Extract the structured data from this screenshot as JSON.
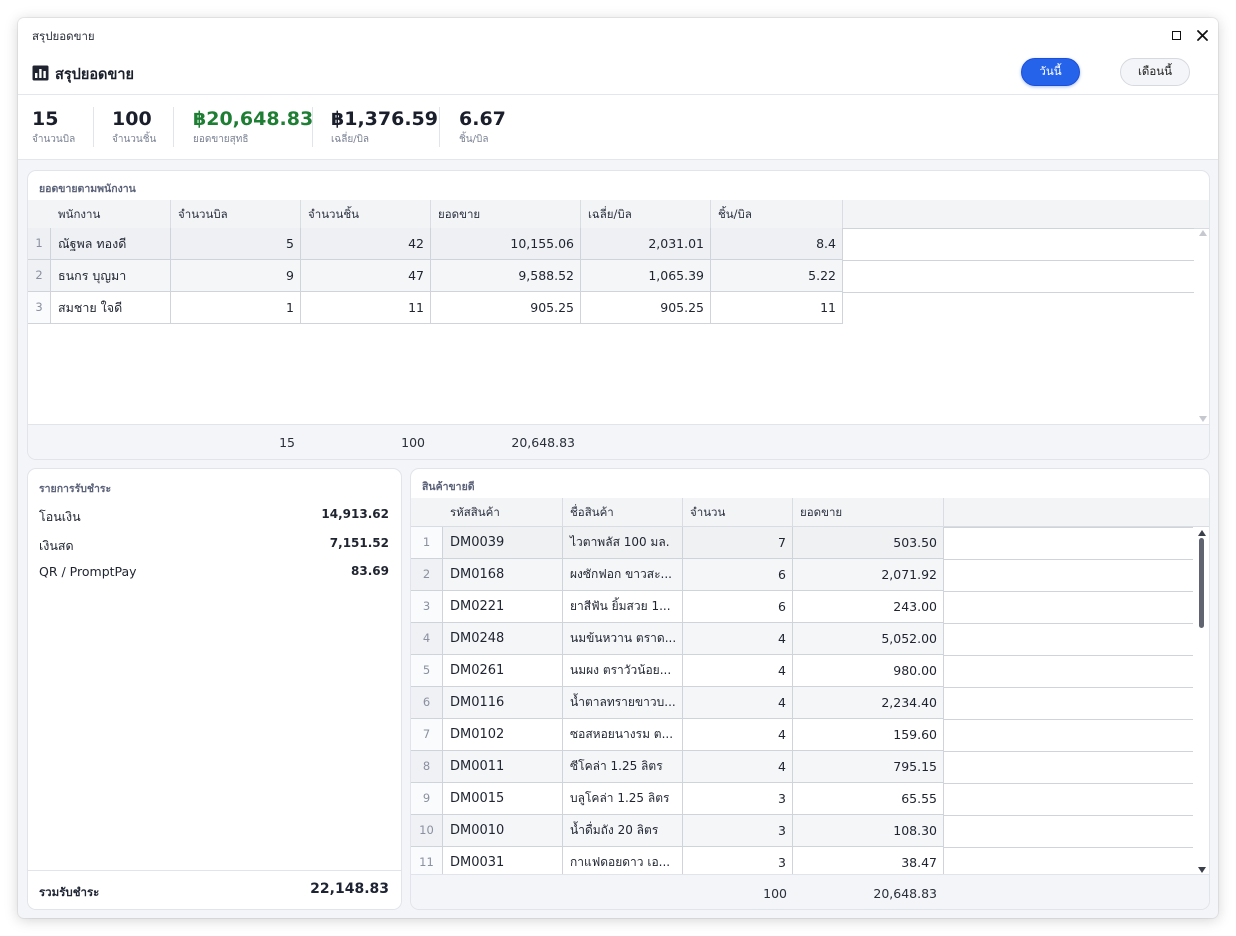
{
  "window": {
    "title": "สรุปยอดขาย"
  },
  "header": {
    "title": "สรุปยอดขาย",
    "btn_today": "วันนี้",
    "btn_month": "เดือนนี้"
  },
  "stats": [
    {
      "value": "15",
      "label": "จำนวนบิล"
    },
    {
      "value": "100",
      "label": "จำนวนชิ้น"
    },
    {
      "value": "฿20,648.83",
      "label": "ยอดขายสุทธิ"
    },
    {
      "value": "฿1,376.59",
      "label": "เฉลี่ย/บิล"
    },
    {
      "value": "6.67",
      "label": "ชิ้น/บิล"
    }
  ],
  "colors": {
    "accent": "#2563eb",
    "net_sales": "#1e7e34"
  },
  "staff": {
    "title": "ยอดขายตามพนักงาน",
    "columns": [
      "พนักงาน",
      "จำนวนบิล",
      "จำนวนชิ้น",
      "ยอดขาย",
      "เฉลี่ย/บิล",
      "ชิ้น/บิล"
    ],
    "rows": [
      {
        "idx": "1",
        "name": "ณัฐพล ทองดี",
        "bills": "5",
        "pieces": "42",
        "sales": "10,155.06",
        "avg": "2,031.01",
        "ppb": "8.4"
      },
      {
        "idx": "2",
        "name": "ธนกร บุญมา",
        "bills": "9",
        "pieces": "47",
        "sales": "9,588.52",
        "avg": "1,065.39",
        "ppb": "5.22"
      },
      {
        "idx": "3",
        "name": "สมชาย ใจดี",
        "bills": "1",
        "pieces": "11",
        "sales": "905.25",
        "avg": "905.25",
        "ppb": "11"
      }
    ],
    "footer": {
      "bills": "15",
      "pieces": "100",
      "sales": "20,648.83"
    }
  },
  "payments": {
    "title": "รายการรับชำระ",
    "items": [
      {
        "label": "โอนเงิน",
        "value": "14,913.62"
      },
      {
        "label": "เงินสด",
        "value": "7,151.52"
      },
      {
        "label": "QR / PromptPay",
        "value": "83.69"
      }
    ],
    "total_label": "รวมรับชำระ",
    "total_value": "22,148.83"
  },
  "products": {
    "title": "สินค้าขายดี",
    "columns": [
      "รหัสสินค้า",
      "ชื่อสินค้า",
      "จำนวน",
      "ยอดขาย"
    ],
    "rows": [
      {
        "idx": "1",
        "code": "DM0039",
        "name": "ไวตาพลัส 100 มล.",
        "qty": "7",
        "sales": "503.50"
      },
      {
        "idx": "2",
        "code": "DM0168",
        "name": "ผงซักฟอก ขาวสะ...",
        "qty": "6",
        "sales": "2,071.92"
      },
      {
        "idx": "3",
        "code": "DM0221",
        "name": "ยาสีฟัน ยิ้มสวย 1...",
        "qty": "6",
        "sales": "243.00"
      },
      {
        "idx": "4",
        "code": "DM0248",
        "name": "นมข้นหวาน ตราด...",
        "qty": "4",
        "sales": "5,052.00"
      },
      {
        "idx": "5",
        "code": "DM0261",
        "name": "นมผง ตราวัวน้อย...",
        "qty": "4",
        "sales": "980.00"
      },
      {
        "idx": "6",
        "code": "DM0116",
        "name": "น้ำตาลทรายขาวบ...",
        "qty": "4",
        "sales": "2,234.40"
      },
      {
        "idx": "7",
        "code": "DM0102",
        "name": "ซอสหอยนางรม ต...",
        "qty": "4",
        "sales": "159.60"
      },
      {
        "idx": "8",
        "code": "DM0011",
        "name": "ซีโคล่า 1.25 ลิตร",
        "qty": "4",
        "sales": "795.15"
      },
      {
        "idx": "9",
        "code": "DM0015",
        "name": "บลูโคล่า 1.25 ลิตร",
        "qty": "3",
        "sales": "65.55"
      },
      {
        "idx": "10",
        "code": "DM0010",
        "name": "น้ำดื่มถัง 20 ลิตร",
        "qty": "3",
        "sales": "108.30"
      },
      {
        "idx": "11",
        "code": "DM0031",
        "name": "กาแฟดอยดาว เอ...",
        "qty": "3",
        "sales": "38.47"
      }
    ],
    "footer": {
      "qty": "100",
      "sales": "20,648.83"
    }
  }
}
